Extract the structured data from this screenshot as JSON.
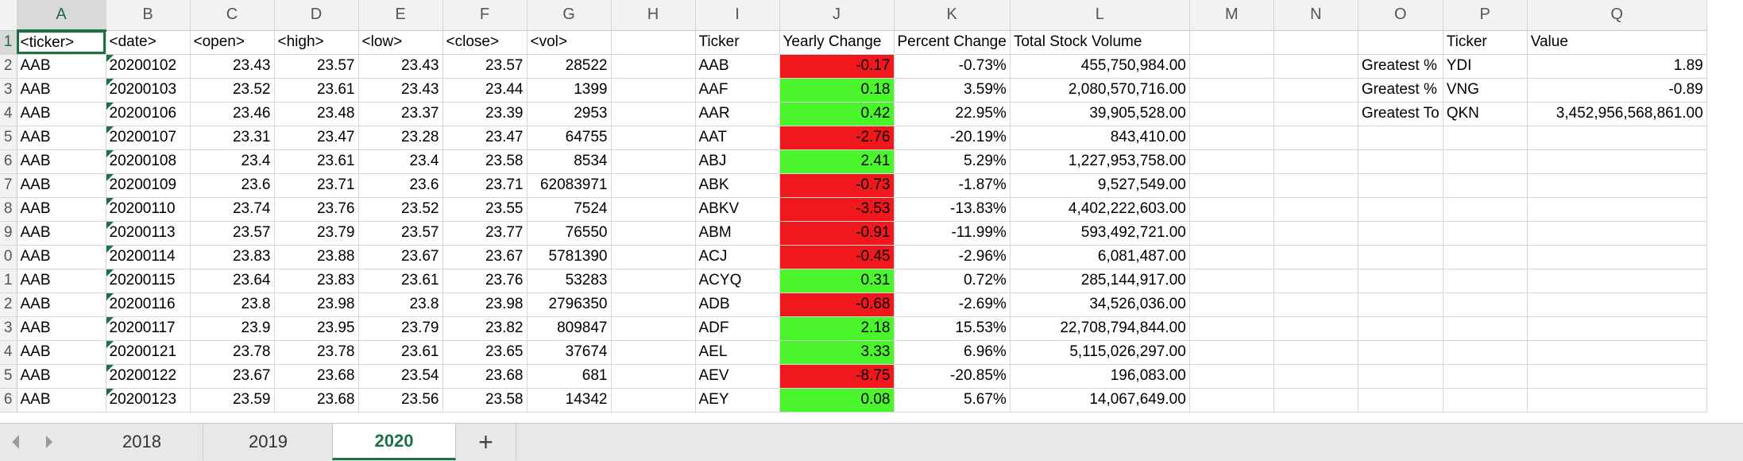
{
  "columns": [
    "A",
    "B",
    "C",
    "D",
    "E",
    "F",
    "G",
    "H",
    "I",
    "J",
    "K",
    "L",
    "M",
    "N",
    "O",
    "P",
    "Q"
  ],
  "rows": [
    {
      "n": "1",
      "cells": [
        "<ticker>",
        "<date>",
        "<open>",
        "<high>",
        "<low>",
        "<close>",
        "<vol>",
        "",
        "Ticker",
        "Yearly Change",
        "Percent Change",
        "Total Stock Volume",
        "",
        "",
        "",
        "Ticker",
        "Value"
      ]
    },
    {
      "n": "2",
      "cells": [
        "AAB",
        "20200102",
        "23.43",
        "23.57",
        "23.43",
        "23.57",
        "28522",
        "",
        "AAB",
        "-0.17",
        "-0.73%",
        "455,750,984.00",
        "",
        "",
        "Greatest %",
        "YDI",
        "1.89"
      ]
    },
    {
      "n": "3",
      "cells": [
        "AAB",
        "20200103",
        "23.52",
        "23.61",
        "23.43",
        "23.44",
        "1399",
        "",
        "AAF",
        "0.18",
        "3.59%",
        "2,080,570,716.00",
        "",
        "",
        "Greatest %",
        "VNG",
        "-0.89"
      ]
    },
    {
      "n": "4",
      "cells": [
        "AAB",
        "20200106",
        "23.46",
        "23.48",
        "23.37",
        "23.39",
        "2953",
        "",
        "AAR",
        "0.42",
        "22.95%",
        "39,905,528.00",
        "",
        "",
        "Greatest To",
        "QKN",
        "3,452,956,568,861.00"
      ]
    },
    {
      "n": "5",
      "cells": [
        "AAB",
        "20200107",
        "23.31",
        "23.47",
        "23.28",
        "23.47",
        "64755",
        "",
        "AAT",
        "-2.76",
        "-20.19%",
        "843,410.00",
        "",
        "",
        "",
        "",
        ""
      ]
    },
    {
      "n": "6",
      "cells": [
        "AAB",
        "20200108",
        "23.4",
        "23.61",
        "23.4",
        "23.58",
        "8534",
        "",
        "ABJ",
        "2.41",
        "5.29%",
        "1,227,953,758.00",
        "",
        "",
        "",
        "",
        ""
      ]
    },
    {
      "n": "7",
      "cells": [
        "AAB",
        "20200109",
        "23.6",
        "23.71",
        "23.6",
        "23.71",
        "62083971",
        "",
        "ABK",
        "-0.73",
        "-1.87%",
        "9,527,549.00",
        "",
        "",
        "",
        "",
        ""
      ]
    },
    {
      "n": "8",
      "cells": [
        "AAB",
        "20200110",
        "23.74",
        "23.76",
        "23.52",
        "23.55",
        "7524",
        "",
        "ABKV",
        "-3.53",
        "-13.83%",
        "4,402,222,603.00",
        "",
        "",
        "",
        "",
        ""
      ]
    },
    {
      "n": "9",
      "cells": [
        "AAB",
        "20200113",
        "23.57",
        "23.79",
        "23.57",
        "23.77",
        "76550",
        "",
        "ABM",
        "-0.91",
        "-11.99%",
        "593,492,721.00",
        "",
        "",
        "",
        "",
        ""
      ]
    },
    {
      "n": "0",
      "cells": [
        "AAB",
        "20200114",
        "23.83",
        "23.88",
        "23.67",
        "23.67",
        "5781390",
        "",
        "ACJ",
        "-0.45",
        "-2.96%",
        "6,081,487.00",
        "",
        "",
        "",
        "",
        ""
      ]
    },
    {
      "n": "1",
      "cells": [
        "AAB",
        "20200115",
        "23.64",
        "23.83",
        "23.61",
        "23.76",
        "53283",
        "",
        "ACYQ",
        "0.31",
        "0.72%",
        "285,144,917.00",
        "",
        "",
        "",
        "",
        ""
      ]
    },
    {
      "n": "2",
      "cells": [
        "AAB",
        "20200116",
        "23.8",
        "23.98",
        "23.8",
        "23.98",
        "2796350",
        "",
        "ADB",
        "-0.68",
        "-2.69%",
        "34,526,036.00",
        "",
        "",
        "",
        "",
        ""
      ]
    },
    {
      "n": "3",
      "cells": [
        "AAB",
        "20200117",
        "23.9",
        "23.95",
        "23.79",
        "23.82",
        "809847",
        "",
        "ADF",
        "2.18",
        "15.53%",
        "22,708,794,844.00",
        "",
        "",
        "",
        "",
        ""
      ]
    },
    {
      "n": "4",
      "cells": [
        "AAB",
        "20200121",
        "23.78",
        "23.78",
        "23.61",
        "23.65",
        "37674",
        "",
        "AEL",
        "3.33",
        "6.96%",
        "5,115,026,297.00",
        "",
        "",
        "",
        "",
        ""
      ]
    },
    {
      "n": "5",
      "cells": [
        "AAB",
        "20200122",
        "23.67",
        "23.68",
        "23.54",
        "23.68",
        "681",
        "",
        "AEV",
        "-8.75",
        "-20.85%",
        "196,083.00",
        "",
        "",
        "",
        "",
        ""
      ]
    },
    {
      "n": "6",
      "cells": [
        "AAB",
        "20200123",
        "23.59",
        "23.68",
        "23.56",
        "23.58",
        "14342",
        "",
        "AEY",
        "0.08",
        "5.67%",
        "14,067,649.00",
        "",
        "",
        "",
        "",
        ""
      ]
    }
  ],
  "tabs": {
    "sheet_2018": "2018",
    "sheet_2019": "2019",
    "sheet_2020": "2020",
    "add": "+"
  },
  "icons": {
    "prev_sheet": "chevron-left-icon",
    "next_sheet": "chevron-right-icon"
  },
  "colors": {
    "positive_fill": "#4bf52c",
    "negative_fill": "#f0171d",
    "accent": "#1e7145"
  }
}
